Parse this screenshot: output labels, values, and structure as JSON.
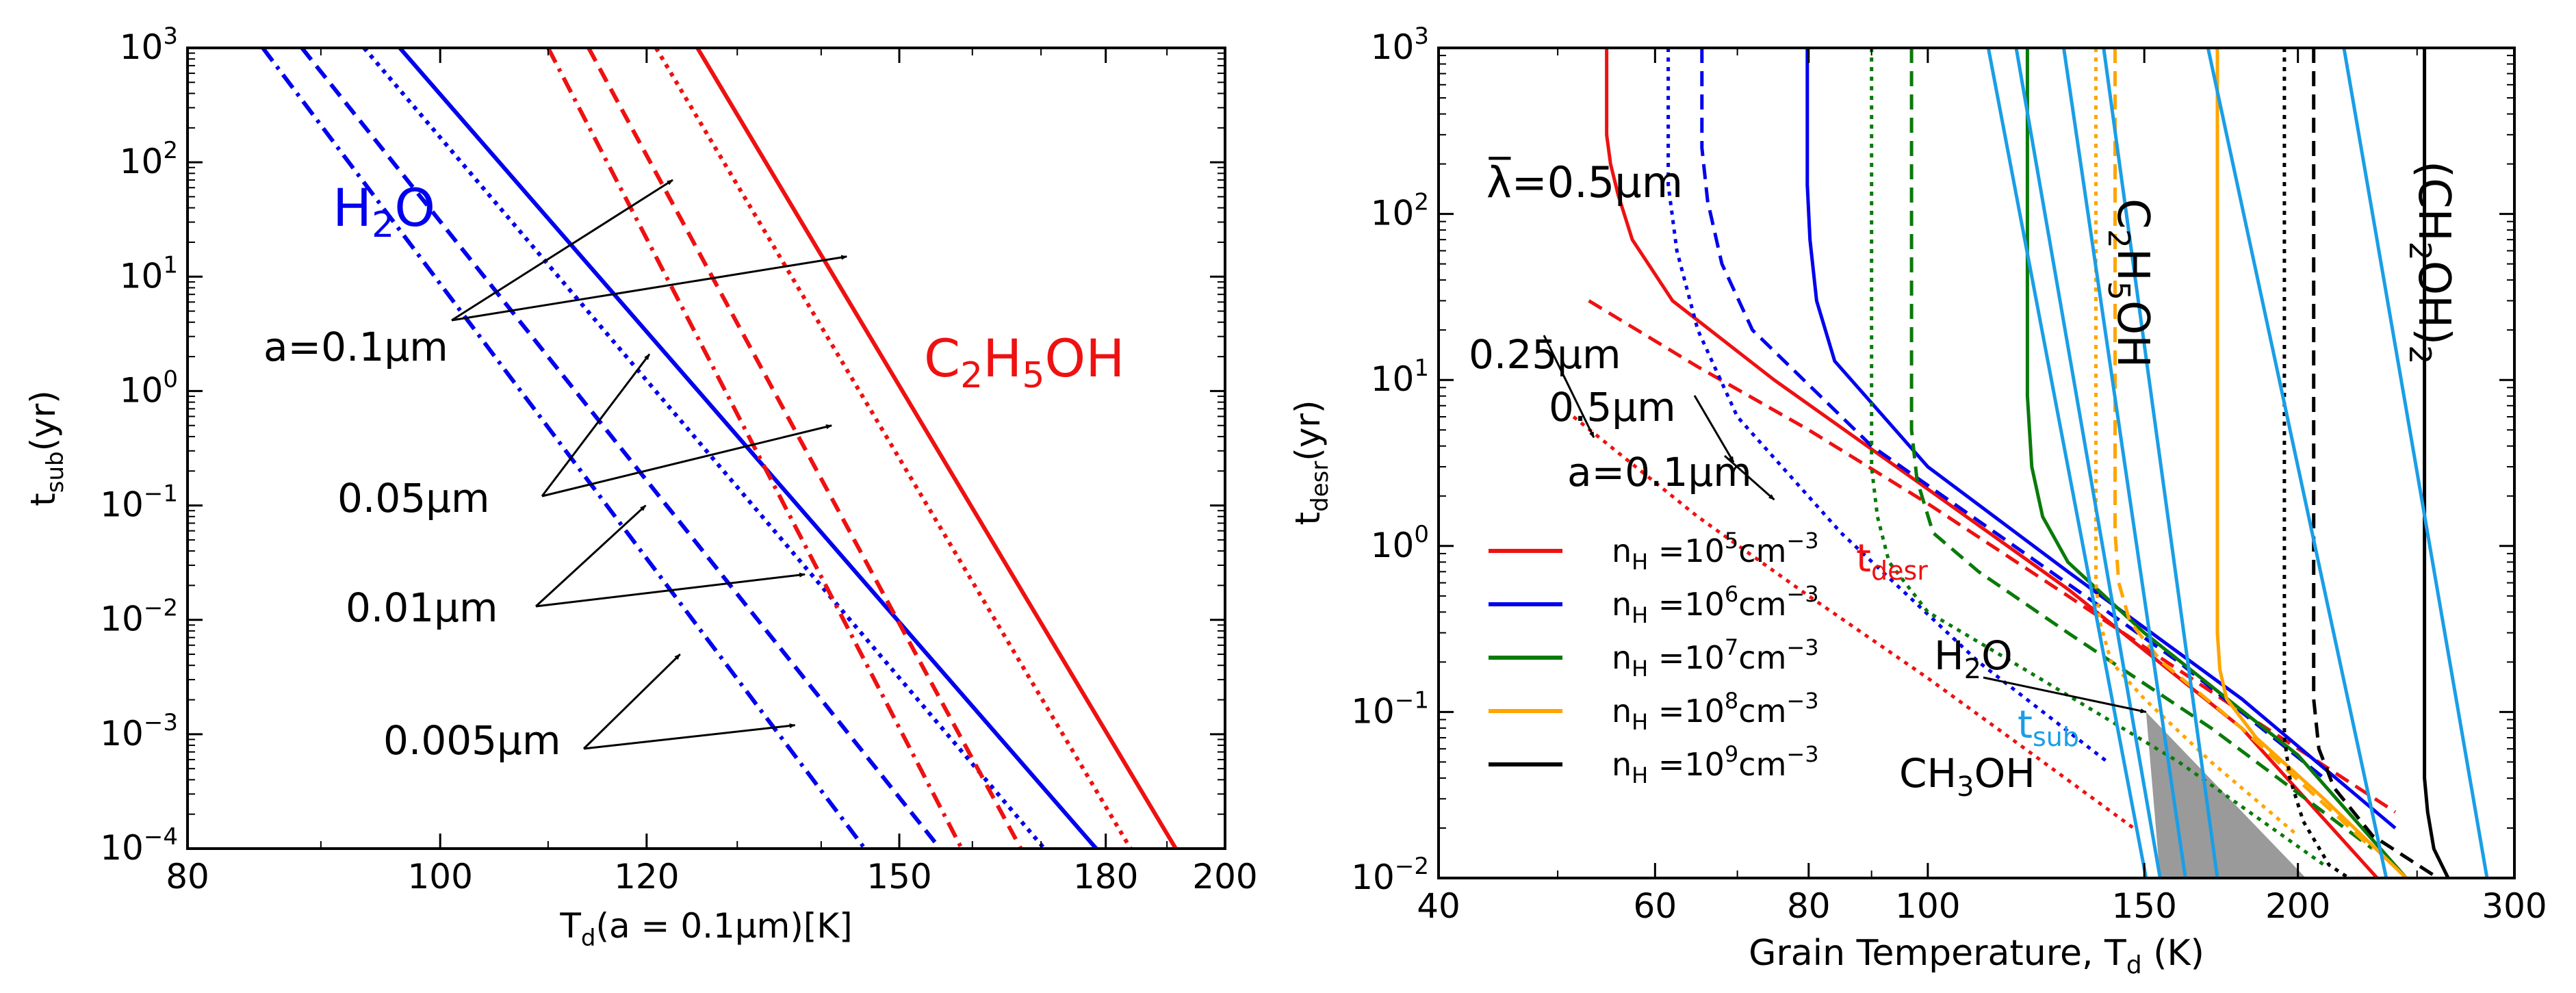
{
  "figure": {
    "panels_count": 2
  },
  "chart_data": [
    {
      "type": "line",
      "panel": "left",
      "title": "",
      "xlabel": "Td(a = 0.1μm)[K]",
      "xlabel_parts": [
        "T",
        "d",
        "(a = 0.1μm)[K]"
      ],
      "ylabel_parts": [
        "t",
        "sub",
        "(yr)"
      ],
      "xscale": "log",
      "yscale": "log",
      "xlim": [
        80,
        200
      ],
      "ylim": [
        0.0001,
        1000
      ],
      "xticks": [
        80,
        100,
        120,
        150,
        180,
        200
      ],
      "xtick_labels": [
        "80",
        "100",
        "120",
        "150",
        "180",
        "200"
      ],
      "yticks": [
        0.0001,
        0.001,
        0.01,
        0.1,
        1,
        10,
        100,
        1000
      ],
      "ytick_exponents": [
        "−4",
        "−3",
        "−2",
        "−1",
        "0",
        "1",
        "2",
        "3"
      ],
      "ytick_base": "10",
      "species_labels": [
        {
          "text": "H2O",
          "parts": [
            "H",
            "2",
            "O"
          ],
          "color": "#0000ee"
        },
        {
          "text": "C2H5OH",
          "parts": [
            "C",
            "2",
            "H",
            "5",
            "OH"
          ],
          "color": "#ee1111"
        }
      ],
      "size_labels": [
        "a=0.1μm",
        "0.05μm",
        "0.01μm",
        "0.005μm"
      ],
      "series": [
        {
          "name": "H2O a=0.1μm",
          "color": "#0000ee",
          "style": "solid",
          "x": [
            96.5,
            178.5
          ],
          "y": [
            1000,
            0.0001
          ]
        },
        {
          "name": "H2O a=0.05μm",
          "color": "#0000ee",
          "style": "dotted",
          "x": [
            93.5,
            170.5
          ],
          "y": [
            1000,
            0.0001
          ]
        },
        {
          "name": "H2O a=0.01μm",
          "color": "#0000ee",
          "style": "dashed",
          "x": [
            88.5,
            155.5
          ],
          "y": [
            1000,
            0.0001
          ]
        },
        {
          "name": "H2O a=0.005μm",
          "color": "#0000ee",
          "style": "dashdot",
          "x": [
            85.5,
            145.5
          ],
          "y": [
            1000,
            0.0001
          ]
        },
        {
          "name": "C2H5OH a=0.1μm",
          "color": "#ee1111",
          "style": "solid",
          "x": [
            125.5,
            191.5
          ],
          "y": [
            1000,
            0.0001
          ]
        },
        {
          "name": "C2H5OH a=0.05μm",
          "color": "#ee1111",
          "style": "dotted",
          "x": [
            121,
            184
          ],
          "y": [
            1000,
            0.0001
          ]
        },
        {
          "name": "C2H5OH a=0.01μm",
          "color": "#ee1111",
          "style": "dashed",
          "x": [
            114,
            167
          ],
          "y": [
            1000,
            0.0001
          ]
        },
        {
          "name": "C2H5OH a=0.005μm",
          "color": "#ee1111",
          "style": "dashdot",
          "x": [
            110,
            158.5
          ],
          "y": [
            1000,
            0.0001
          ]
        }
      ],
      "annotations": [
        {
          "label": "a=0.1μm",
          "text_at": [
            94.5,
            4
          ],
          "arrows_to": [
            [
              122.8,
              70
            ],
            [
              143.2,
              15
            ]
          ]
        },
        {
          "label": "0.05μm",
          "text_at": [
            106.5,
            0.12
          ],
          "arrows_to": [
            [
              120.3,
              2.1
            ],
            [
              141.3,
              0.5
            ]
          ]
        },
        {
          "label": "0.01μm",
          "text_at": [
            108.5,
            0.013
          ],
          "arrows_to": [
            [
              119.9,
              0.1
            ],
            [
              138.0,
              0.025
            ]
          ]
        },
        {
          "label": "0.005μm",
          "text_at": [
            111,
            0.001
          ],
          "arrows_to": [
            [
              123.6,
              0.005
            ],
            [
              136.8,
              0.0012
            ]
          ]
        }
      ]
    },
    {
      "type": "line",
      "panel": "right",
      "title": "",
      "xlabel": "Grain Temperature, Td (K)",
      "xlabel_parts": [
        "Grain Temperature, T",
        "d",
        " (K)"
      ],
      "ylabel_parts": [
        "t",
        "desr",
        "(yr)"
      ],
      "xscale": "log",
      "yscale": "log",
      "xlim": [
        40,
        300
      ],
      "ylim": [
        0.01,
        1000
      ],
      "xticks": [
        40,
        60,
        80,
        100,
        150,
        200,
        300
      ],
      "xtick_labels": [
        "40",
        "60",
        "80",
        "100",
        "150",
        "200",
        "300"
      ],
      "yticks": [
        0.01,
        0.1,
        1,
        10,
        100,
        1000
      ],
      "ytick_exponents": [
        "−2",
        "−1",
        "0",
        "1",
        "2",
        "3"
      ],
      "ytick_base": "10",
      "lambda_label": "λ̅=0.5μm",
      "size_labels": [
        "0.25μm",
        "0.5μm",
        "a=0.1μm"
      ],
      "species_labels": [
        {
          "text": "C2H5OH",
          "parts": [
            "C",
            "2",
            "H",
            "5",
            "OH"
          ],
          "rotated": true
        },
        {
          "text": "(CH2OH)2",
          "parts": [
            "(CH",
            "2",
            "OH)",
            "2"
          ],
          "rotated": true
        },
        {
          "text": "H2O",
          "parts": [
            "H",
            "2",
            "O"
          ]
        },
        {
          "text": "CH3OH",
          "parts": [
            "CH",
            "3",
            "OH"
          ]
        }
      ],
      "tdesr_label": {
        "parts": [
          "t",
          "desr"
        ],
        "color": "#ee1111"
      },
      "tsub_label": {
        "parts": [
          "t",
          "sub"
        ],
        "color": "#1a9ee6"
      },
      "legend": {
        "placement": "lower-left",
        "entries": [
          {
            "base": "n",
            "sub": "H",
            "mid": " =10",
            "exp": "5",
            "unit": "cm",
            "unit_exp": "−3",
            "color": "#ee1111"
          },
          {
            "base": "n",
            "sub": "H",
            "mid": " =10",
            "exp": "6",
            "unit": "cm",
            "unit_exp": "−3",
            "color": "#0000ee"
          },
          {
            "base": "n",
            "sub": "H",
            "mid": " =10",
            "exp": "7",
            "unit": "cm",
            "unit_exp": "−3",
            "color": "#0a7a0a"
          },
          {
            "base": "n",
            "sub": "H",
            "mid": " =10",
            "exp": "8",
            "unit": "cm",
            "unit_exp": "−3",
            "color": "#ffa500"
          },
          {
            "base": "n",
            "sub": "H",
            "mid": " =10",
            "exp": "9",
            "unit": "cm",
            "unit_exp": "−3",
            "color": "#000000"
          }
        ]
      },
      "shaded_region": {
        "color": "#9a9a9a",
        "x": [
          150.5,
          154.5,
          203,
          150.5
        ],
        "y": [
          0.1,
          0.01,
          0.01,
          0.1
        ]
      },
      "series": [
        {
          "name": "nH=1e5 a=0.1μm",
          "color": "#ee1111",
          "style": "solid",
          "x": [
            54.8,
            54.8,
            55.2,
            56,
            57.5,
            62,
            75,
            100,
            130,
            180,
            232
          ],
          "y": [
            1000,
            300,
            200,
            130,
            70,
            30,
            10,
            2.2,
            0.55,
            0.08,
            0.01
          ]
        },
        {
          "name": "nH=1e5 a=0.5μm",
          "color": "#ee1111",
          "style": "dashed",
          "x": [
            53,
            65,
            80,
            100,
            130,
            180,
            240
          ],
          "y": [
            30,
            12,
            5,
            1.8,
            0.5,
            0.1,
            0.025
          ]
        },
        {
          "name": "nH=1e5 a=0.25μm",
          "color": "#ee1111",
          "style": "dotted",
          "x": [
            51.5,
            65,
            80,
            100,
            120,
            147
          ],
          "y": [
            6,
            1.5,
            0.5,
            0.16,
            0.06,
            0.02
          ]
        },
        {
          "name": "nH=1e6 a=0.1μm",
          "color": "#0000ee",
          "style": "solid",
          "x": [
            79.8,
            79.8,
            80.2,
            81.2,
            84,
            100,
            130,
            180,
            240
          ],
          "y": [
            1000,
            150,
            70,
            30,
            13,
            3,
            0.7,
            0.12,
            0.02
          ]
        },
        {
          "name": "nH=1e6 a=0.5μm",
          "color": "#0000ee",
          "style": "dashed",
          "x": [
            65.5,
            65.5,
            66.2,
            68,
            72,
            90,
            120,
            160,
            210
          ],
          "y": [
            1000,
            250,
            120,
            50,
            20,
            4,
            0.9,
            0.2,
            0.04
          ]
        },
        {
          "name": "nH=1e6 a=0.25μm",
          "color": "#0000ee",
          "style": "dotted",
          "x": [
            61.5,
            61.5,
            62.5,
            65,
            70,
            85,
            110,
            140
          ],
          "y": [
            1000,
            150,
            60,
            20,
            6,
            1.2,
            0.2,
            0.05
          ]
        },
        {
          "name": "nH=1e7 a=0.1μm",
          "color": "#0a7a0a",
          "style": "solid",
          "x": [
            120.5,
            120.5,
            121.5,
            124,
            130,
            150,
            200,
            245
          ],
          "y": [
            1000,
            8,
            3,
            1.5,
            0.8,
            0.3,
            0.055,
            0.01
          ]
        },
        {
          "name": "nH=1e7 a=0.5μm",
          "color": "#0a7a0a",
          "style": "dashed",
          "x": [
            97,
            97,
            98,
            101,
            110,
            130,
            170,
            230
          ],
          "y": [
            1000,
            5,
            2.5,
            1.2,
            0.7,
            0.3,
            0.08,
            0.015
          ]
        },
        {
          "name": "nH=1e7 a=0.25μm",
          "color": "#0a7a0a",
          "style": "dotted",
          "x": [
            90,
            90,
            91,
            93,
            100,
            120,
            160,
            210
          ],
          "y": [
            1000,
            3,
            1.5,
            0.8,
            0.4,
            0.18,
            0.05,
            0.012
          ]
        },
        {
          "name": "nH=1e8 a=0.1μm",
          "color": "#ffa500",
          "style": "solid",
          "x": [
            172,
            172,
            172.8,
            175,
            185,
            210,
            245
          ],
          "y": [
            1000,
            0.3,
            0.18,
            0.12,
            0.07,
            0.03,
            0.01
          ]
        },
        {
          "name": "nH=1e8 a=0.5μm",
          "color": "#ffa500",
          "style": "dashed",
          "x": [
            142,
            142,
            143,
            146,
            155,
            180,
            230
          ],
          "y": [
            1000,
            1.2,
            0.6,
            0.35,
            0.2,
            0.08,
            0.015
          ]
        },
        {
          "name": "nH=1e8 a=0.25μm",
          "color": "#ffa500",
          "style": "dotted",
          "x": [
            137,
            137,
            138,
            141,
            150,
            170,
            200
          ],
          "y": [
            1000,
            0.6,
            0.35,
            0.2,
            0.12,
            0.05,
            0.018
          ]
        },
        {
          "name": "nH=1e9 a=0.1μm",
          "color": "#000000",
          "style": "solid",
          "x": [
            253.5,
            253.5,
            255,
            258,
            265
          ],
          "y": [
            1000,
            0.04,
            0.025,
            0.015,
            0.01
          ]
        },
        {
          "name": "nH=1e9 a=0.5μm",
          "color": "#000000",
          "style": "dashed",
          "x": [
            206,
            206,
            208,
            214,
            230,
            260
          ],
          "y": [
            1000,
            0.12,
            0.06,
            0.035,
            0.018,
            0.01
          ]
        },
        {
          "name": "nH=1e9 a=0.25μm",
          "color": "#000000",
          "style": "dotted",
          "x": [
            195,
            195,
            197,
            202,
            212,
            220
          ],
          "y": [
            1000,
            0.07,
            0.04,
            0.022,
            0.012,
            0.01
          ]
        },
        {
          "name": "H2O tsub a=0.005μm",
          "color": "#1a9ee6",
          "style": "solid",
          "x": [
            112,
            150.5
          ],
          "y": [
            1000,
            0.01
          ]
        },
        {
          "name": "H2O tsub a=0.01μm",
          "color": "#1a9ee6",
          "style": "solid",
          "x": [
            118,
            154.5
          ],
          "y": [
            1000,
            0.01
          ]
        },
        {
          "name": "H2O tsub a=0.05μm",
          "color": "#1a9ee6",
          "style": "solid",
          "x": [
            129,
            162
          ],
          "y": [
            1000,
            0.01
          ]
        },
        {
          "name": "CH3OH tsub",
          "color": "#1a9ee6",
          "style": "solid",
          "x": [
            139,
            172
          ],
          "y": [
            1000,
            0.01
          ]
        },
        {
          "name": "C2H5OH tsub",
          "color": "#1a9ee6",
          "style": "solid",
          "x": [
            169,
            236
          ],
          "y": [
            1000,
            0.01
          ]
        },
        {
          "name": "(CH2OH)2 tsub",
          "color": "#1a9ee6",
          "style": "solid",
          "x": [
            218,
            285
          ],
          "y": [
            1000,
            0.01
          ]
        }
      ],
      "annotations": [
        {
          "label": "0.25μm",
          "arrows_to": [
            [
              53.5,
              4.5
            ]
          ]
        },
        {
          "label": "0.5μm",
          "arrows_to": [
            [
              69.5,
              3.2
            ]
          ]
        },
        {
          "label": "a=0.1μm",
          "arrows_to": [
            [
              75,
              1.9
            ]
          ]
        }
      ]
    }
  ]
}
